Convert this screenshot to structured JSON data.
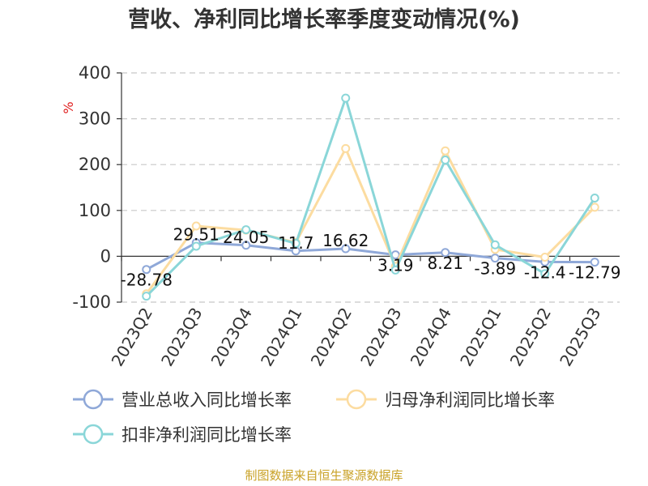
{
  "chart_data": {
    "type": "line",
    "title": "营收、净利同比增长率季度变动情况(%)",
    "ylabel": "%",
    "ylim": [
      -100,
      400
    ],
    "yticks": [
      -100,
      0,
      100,
      200,
      300,
      400
    ],
    "grid": true,
    "legend_position": "bottom",
    "categories": [
      "2023Q2",
      "2023Q3",
      "2023Q4",
      "2024Q1",
      "2024Q2",
      "2024Q3",
      "2024Q4",
      "2025Q1",
      "2025Q2",
      "2025Q3"
    ],
    "series": [
      {
        "name": "营业总收入同比增长率",
        "color": "#8fa8d8",
        "values": [
          -28.78,
          29.51,
          24.05,
          11.7,
          16.62,
          3.19,
          8.21,
          -3.89,
          -12.4,
          -12.79
        ],
        "data_labels": [
          "-28.78",
          "29.51",
          "24.05",
          "11.7",
          "16.62",
          "3.19",
          "8.21",
          "-3.89",
          "-12.4",
          "-12.79"
        ]
      },
      {
        "name": "归母净利润同比增长率",
        "color": "#fcdca0",
        "values": [
          -82,
          66,
          57,
          30,
          235,
          -22,
          230,
          15,
          -2,
          107
        ]
      },
      {
        "name": "扣非净利润同比增长率",
        "color": "#8ad6d8",
        "values": [
          -87,
          22,
          58,
          28,
          345,
          -30,
          210,
          25,
          -38,
          127
        ]
      }
    ]
  },
  "source_text": "制图数据来自恒生聚源数据库"
}
